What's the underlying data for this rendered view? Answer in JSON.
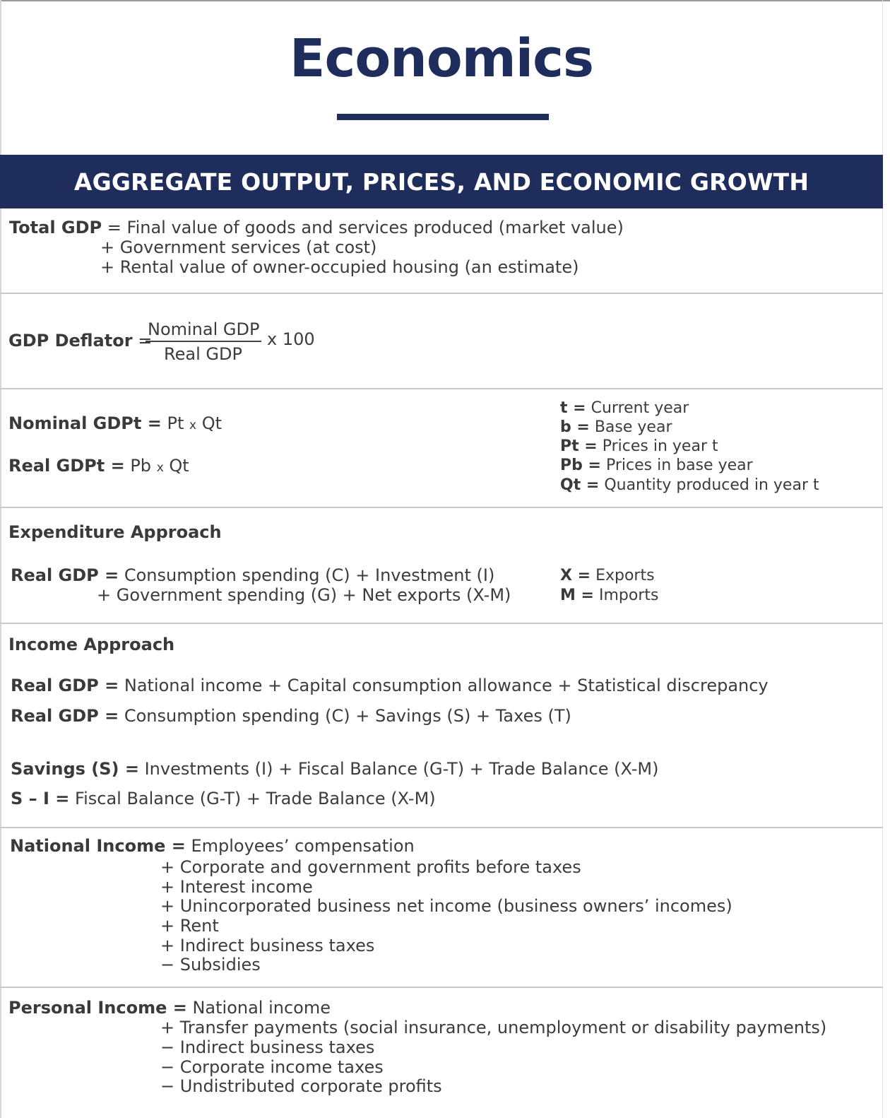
{
  "title": "Economics",
  "banner": "AGGREGATE OUTPUT, PRICES, AND ECONOMIC GROWTH",
  "total_gdp": {
    "label": "Total GDP",
    "lines": [
      "= Final value of goods and services produced (market value)",
      "+ Government services (at cost)",
      "+ Rental value of owner-occupied housing (an estimate)"
    ]
  },
  "gdp_deflator": {
    "label": "GDP Deflator",
    "eq": "=",
    "numerator": "Nominal GDP",
    "denominator": "Real GDP",
    "multiplier": "x 100"
  },
  "nominal_real": {
    "nominal_label": "Nominal GDPt =",
    "nominal_a": "Pt",
    "nominal_x": "x",
    "nominal_b": "Qt",
    "real_label": "Real GDPt =",
    "real_a": "Pb",
    "real_x": "x",
    "real_b": "Qt",
    "legend": [
      {
        "key": "t =",
        "value": "Current year"
      },
      {
        "key": "b =",
        "value": "Base year"
      },
      {
        "key": "Pt =",
        "value": "Prices in year t"
      },
      {
        "key": "Pb =",
        "value": "Prices in base year"
      },
      {
        "key": "Qt =",
        "value": "Quantity produced in year t"
      }
    ]
  },
  "expenditure": {
    "heading": "Expenditure Approach",
    "label": "Real GDP =",
    "line1": "Consumption spending (C) + Investment (I)",
    "line2": "+ Government spending (G) + Net exports (X-M)",
    "legend": [
      {
        "key": "X =",
        "value": "Exports"
      },
      {
        "key": "M =",
        "value": "Imports"
      }
    ]
  },
  "income": {
    "heading": "Income Approach",
    "eq1_label": "Real GDP =",
    "eq1": "National income + Capital consumption allowance + Statistical discrepancy",
    "eq2_label": "Real GDP =",
    "eq2": "Consumption spending (C) + Savings (S) + Taxes (T)",
    "eq3_label": "Savings (S) =",
    "eq3": "Investments (I) + Fiscal Balance (G-T) + Trade Balance (X-M)",
    "eq4_label": "S – I =",
    "eq4": "Fiscal Balance (G-T) + Trade Balance (X-M)"
  },
  "national_income": {
    "label": "National Income =",
    "lines": [
      "Employees’ compensation",
      "+ Corporate and government profits before taxes",
      "+ Interest income",
      "+ Unincorporated business net income (business owners’ incomes)",
      "+ Rent",
      "+ Indirect business taxes",
      "− Subsidies"
    ]
  },
  "personal_income": {
    "label": "Personal Income =",
    "lines": [
      "National income",
      "+ Transfer payments (social insurance, unemployment or disability payments)",
      "− Indirect business taxes",
      "− Corporate income taxes",
      "− Undistributed corporate profits"
    ]
  }
}
